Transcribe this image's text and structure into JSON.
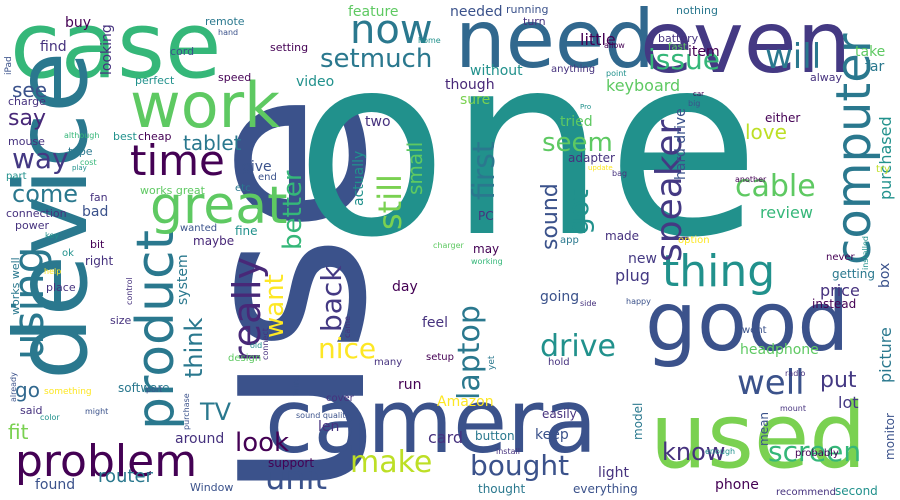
{
  "palette": [
    "#440154",
    "#46327e",
    "#365c8d",
    "#277f8e",
    "#1fa187",
    "#4ac16d",
    "#a0da39",
    "#fde725"
  ],
  "words": [
    {
      "text": "use",
      "color": "#3b528b"
    },
    {
      "text": "one",
      "color": "#21918c"
    },
    {
      "text": "case",
      "color": "#35b779"
    },
    {
      "text": "device",
      "color": "#2a788e"
    },
    {
      "text": "camera",
      "color": "#3b528b"
    },
    {
      "text": "need",
      "color": "#31688e"
    },
    {
      "text": "even",
      "color": "#443983"
    },
    {
      "text": "good",
      "color": "#3b528b"
    },
    {
      "text": "used",
      "color": "#7ad151"
    },
    {
      "text": "work",
      "color": "#5ec962"
    },
    {
      "text": "product",
      "color": "#2a788e"
    },
    {
      "text": "computer",
      "color": "#2a788e"
    },
    {
      "text": "great",
      "color": "#5ec962"
    },
    {
      "text": "time",
      "color": "#440154"
    },
    {
      "text": "thing",
      "color": "#21918c"
    },
    {
      "text": "problem",
      "color": "#440154"
    },
    {
      "text": "using",
      "color": "#2a788e"
    },
    {
      "text": "now",
      "color": "#2a788e"
    },
    {
      "text": "speaker",
      "color": "#443983"
    },
    {
      "text": "make",
      "color": "#bddf26"
    },
    {
      "text": "well",
      "color": "#3b528b"
    },
    {
      "text": "setmuch",
      "color": "#2a788e"
    },
    {
      "text": "issue",
      "color": "#35b779"
    },
    {
      "text": "bought",
      "color": "#3b528b"
    },
    {
      "text": "unit",
      "color": "#3b528b"
    },
    {
      "text": "really",
      "color": "#482878"
    },
    {
      "text": "will",
      "color": "#2a788e"
    },
    {
      "text": "laptop",
      "color": "#2a788e"
    },
    {
      "text": "cable",
      "color": "#5ec962"
    },
    {
      "text": "screen",
      "color": "#35b779"
    },
    {
      "text": "still",
      "color": "#7ad151"
    },
    {
      "text": "first",
      "color": "#2a788e"
    },
    {
      "text": "drive",
      "color": "#21918c"
    },
    {
      "text": "look",
      "color": "#440154"
    },
    {
      "text": "back",
      "color": "#443983"
    },
    {
      "text": "want",
      "color": "#fde725"
    },
    {
      "text": "better",
      "color": "#35b779"
    },
    {
      "text": "got",
      "color": "#21918c"
    },
    {
      "text": "way",
      "color": "#443983"
    },
    {
      "text": "come",
      "color": "#2a788e"
    },
    {
      "text": "nice",
      "color": "#fde725"
    },
    {
      "text": "seem",
      "color": "#5ec962"
    },
    {
      "text": "think",
      "color": "#2a788e"
    },
    {
      "text": "TV",
      "color": "#2a788e"
    },
    {
      "text": "put",
      "color": "#443983"
    },
    {
      "text": "sound",
      "color": "#3b528b"
    },
    {
      "text": "say",
      "color": "#482878"
    },
    {
      "text": "see",
      "color": "#3b528b"
    },
    {
      "text": "fit",
      "color": "#7ad151"
    },
    {
      "text": "tablet",
      "color": "#2a788e"
    },
    {
      "text": "small",
      "color": "#5ec962"
    },
    {
      "text": "know",
      "color": "#46327e"
    },
    {
      "text": "love",
      "color": "#bddf26"
    },
    {
      "text": "card",
      "color": "#46327e"
    },
    {
      "text": "router",
      "color": "#2a788e"
    },
    {
      "text": "go",
      "color": "#31688e"
    },
    {
      "text": "keyboard",
      "color": "#5ec962"
    },
    {
      "text": "little",
      "color": "#440154"
    },
    {
      "text": "purchased",
      "color": "#21918c"
    },
    {
      "text": "review",
      "color": "#35b779"
    },
    {
      "text": "picture",
      "color": "#2a788e"
    },
    {
      "text": "lot",
      "color": "#443983"
    },
    {
      "text": "price",
      "color": "#46327e"
    },
    {
      "text": "plug",
      "color": "#443983"
    },
    {
      "text": "going",
      "color": "#3b528b"
    },
    {
      "text": "feature",
      "color": "#5ec962"
    },
    {
      "text": "needed",
      "color": "#3b528b"
    },
    {
      "text": "item",
      "color": "#440154"
    },
    {
      "text": "far",
      "color": "#2a788e"
    },
    {
      "text": "take",
      "color": "#5ec962"
    },
    {
      "text": "sure",
      "color": "#7ad151"
    },
    {
      "text": "though",
      "color": "#482878"
    },
    {
      "text": "without",
      "color": "#21918c"
    },
    {
      "text": "tried",
      "color": "#5ec962"
    },
    {
      "text": "two",
      "color": "#46327e"
    },
    {
      "text": "actually",
      "color": "#21918c"
    },
    {
      "text": "headphone",
      "color": "#5ec962"
    },
    {
      "text": "give",
      "color": "#3b528b"
    },
    {
      "text": "video",
      "color": "#21918c"
    },
    {
      "text": "buy",
      "color": "#440154"
    },
    {
      "text": "find",
      "color": "#46327e"
    },
    {
      "text": "looking",
      "color": "#46327e"
    },
    {
      "text": "feel",
      "color": "#46327e"
    },
    {
      "text": "day",
      "color": "#440154"
    },
    {
      "text": "run",
      "color": "#440154"
    },
    {
      "text": "new",
      "color": "#443983"
    },
    {
      "text": "hard drive",
      "color": "#3b528b"
    },
    {
      "text": "Amazon",
      "color": "#fde725"
    },
    {
      "text": "keep",
      "color": "#3b528b"
    },
    {
      "text": "len",
      "color": "#46327e"
    },
    {
      "text": "around",
      "color": "#46327e"
    },
    {
      "text": "light",
      "color": "#46327e"
    },
    {
      "text": "found",
      "color": "#3b528b"
    },
    {
      "text": "phone",
      "color": "#440154"
    },
    {
      "text": "bad",
      "color": "#3b528b"
    },
    {
      "text": "system",
      "color": "#2a788e"
    },
    {
      "text": "fine",
      "color": "#21918c"
    },
    {
      "text": "right",
      "color": "#46327e"
    },
    {
      "text": "maybe",
      "color": "#482878"
    },
    {
      "text": "either",
      "color": "#440154"
    },
    {
      "text": "box",
      "color": "#3b528b"
    },
    {
      "text": "instead",
      "color": "#440154"
    },
    {
      "text": "getting",
      "color": "#2a788e"
    },
    {
      "text": "adapter",
      "color": "#46327e"
    },
    {
      "text": "made",
      "color": "#46327e"
    },
    {
      "text": "may",
      "color": "#440154"
    },
    {
      "text": "PC",
      "color": "#46327e"
    },
    {
      "text": "easily",
      "color": "#46327e"
    },
    {
      "text": "button",
      "color": "#2a788e"
    },
    {
      "text": "model",
      "color": "#2a788e"
    },
    {
      "text": "mean",
      "color": "#3b528b"
    },
    {
      "text": "support",
      "color": "#440154"
    },
    {
      "text": "Window",
      "color": "#3b528b"
    },
    {
      "text": "thought",
      "color": "#2a788e"
    },
    {
      "text": "everything",
      "color": "#3b528b"
    },
    {
      "text": "second",
      "color": "#21918c"
    },
    {
      "text": "recommend",
      "color": "#46327e"
    },
    {
      "text": "probably",
      "color": "#440154"
    },
    {
      "text": "monitor",
      "color": "#3b528b"
    },
    {
      "text": "software",
      "color": "#2a788e"
    },
    {
      "text": "said",
      "color": "#46327e"
    },
    {
      "text": "works well",
      "color": "#2a788e"
    },
    {
      "text": "works great",
      "color": "#5ec962"
    },
    {
      "text": "place",
      "color": "#46327e"
    },
    {
      "text": "connection",
      "color": "#46327e"
    },
    {
      "text": "power",
      "color": "#46327e"
    },
    {
      "text": "charge",
      "color": "#46327e"
    },
    {
      "text": "mouse",
      "color": "#46327e"
    },
    {
      "text": "part",
      "color": "#21918c"
    },
    {
      "text": "fan",
      "color": "#46327e"
    },
    {
      "text": "cheap",
      "color": "#440154"
    },
    {
      "text": "best",
      "color": "#21918c"
    },
    {
      "text": "perfect",
      "color": "#21918c"
    },
    {
      "text": "speed",
      "color": "#440154"
    },
    {
      "text": "cord",
      "color": "#3b528b"
    },
    {
      "text": "setting",
      "color": "#440154"
    },
    {
      "text": "remote",
      "color": "#2a788e"
    },
    {
      "text": "turn",
      "color": "#46327e"
    },
    {
      "text": "running",
      "color": "#3b528b"
    },
    {
      "text": "nothing",
      "color": "#2a788e"
    },
    {
      "text": "battery",
      "color": "#46327e"
    },
    {
      "text": "fast",
      "color": "#5ec962"
    },
    {
      "text": "alway",
      "color": "#46327e"
    },
    {
      "text": "anything",
      "color": "#46327e"
    },
    {
      "text": "point",
      "color": "#21918c"
    },
    {
      "text": "allow",
      "color": "#440154"
    },
    {
      "text": "home",
      "color": "#21918c"
    },
    {
      "text": "hand",
      "color": "#3b528b"
    },
    {
      "text": "iPad",
      "color": "#3b528b"
    },
    {
      "text": "type",
      "color": "#2a788e"
    },
    {
      "text": "cost",
      "color": "#35b779"
    },
    {
      "text": "although",
      "color": "#35b779"
    },
    {
      "text": "etc",
      "color": "#2a788e"
    },
    {
      "text": "end",
      "color": "#3b528b"
    },
    {
      "text": "wanted",
      "color": "#3b528b"
    },
    {
      "text": "bit",
      "color": "#440154"
    },
    {
      "text": "ok",
      "color": "#21918c"
    },
    {
      "text": "key",
      "color": "#21918c"
    },
    {
      "text": "help",
      "color": "#fde725"
    },
    {
      "text": "color",
      "color": "#21918c"
    },
    {
      "text": "might",
      "color": "#3b528b"
    },
    {
      "text": "size",
      "color": "#46327e"
    },
    {
      "text": "port",
      "color": "#3b528b"
    },
    {
      "text": "design",
      "color": "#5ec962"
    },
    {
      "text": "old",
      "color": "#21918c"
    },
    {
      "text": "connect",
      "color": "#46327e"
    },
    {
      "text": "control",
      "color": "#46327e"
    },
    {
      "text": "purchase",
      "color": "#3b528b"
    },
    {
      "text": "wire",
      "color": "#3b528b"
    },
    {
      "text": "cover",
      "color": "#46327e"
    },
    {
      "text": "sound quality",
      "color": "#3b528b"
    },
    {
      "text": "came",
      "color": "#46327e"
    },
    {
      "text": "many",
      "color": "#46327e"
    },
    {
      "text": "setup",
      "color": "#440154"
    },
    {
      "text": "yet",
      "color": "#2a788e"
    },
    {
      "text": "hold",
      "color": "#46327e"
    },
    {
      "text": "install",
      "color": "#46327e"
    },
    {
      "text": "enough",
      "color": "#21918c"
    },
    {
      "text": "radio",
      "color": "#46327e"
    },
    {
      "text": "mount",
      "color": "#46327e"
    },
    {
      "text": "went",
      "color": "#3b528b"
    },
    {
      "text": "happy",
      "color": "#3b528b"
    },
    {
      "text": "side",
      "color": "#46327e"
    },
    {
      "text": "working",
      "color": "#35b779"
    },
    {
      "text": "charger",
      "color": "#5ec962"
    },
    {
      "text": "app",
      "color": "#2a788e"
    },
    {
      "text": "option",
      "color": "#fde725"
    },
    {
      "text": "never",
      "color": "#440154"
    },
    {
      "text": "installed",
      "color": "#21918c"
    },
    {
      "text": "try",
      "color": "#bddf26"
    },
    {
      "text": "another",
      "color": "#440154"
    },
    {
      "text": "bag",
      "color": "#46327e"
    },
    {
      "text": "update",
      "color": "#fde725"
    },
    {
      "text": "Pro",
      "color": "#21918c"
    },
    {
      "text": "big",
      "color": "#3b528b"
    },
    {
      "text": "car",
      "color": "#440154"
    },
    {
      "text": "play",
      "color": "#21918c"
    },
    {
      "text": "already",
      "color": "#3b528b"
    },
    {
      "text": "something",
      "color": "#fde725"
    }
  ]
}
